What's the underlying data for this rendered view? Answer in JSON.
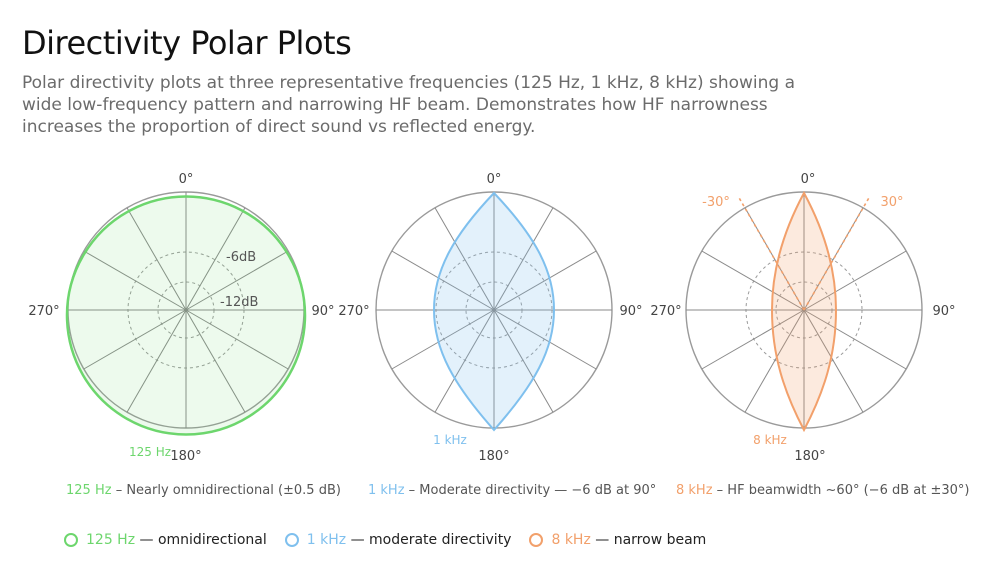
{
  "page": {
    "title": "Directivity Polar Plots",
    "subtitle": "Polar directivity plots at three representative frequencies (125 Hz, 1 kHz, 8 kHz) showing a wide low-frequency pattern and narrowing HF beam. Demonstrates how HF narrowness increases the proportion of direct sound vs reflected energy."
  },
  "colors": {
    "green": "#6dd66d",
    "blue": "#7fc0ee",
    "orange": "#f2a06b",
    "grid": "#9a9a9a",
    "spoke": "#8a8a8a"
  },
  "plots": [
    {
      "angle_labels": {
        "top": "0°",
        "right": "90°",
        "bottom": "180°",
        "left": "270°"
      },
      "ring_labels": [
        "-6dB",
        "-12dB"
      ],
      "freq_label": "125 Hz",
      "caption_freq": "125 Hz",
      "caption_text": "– Nearly omnidirectional (±0.5 dB)"
    },
    {
      "angle_labels": {
        "top": "0°",
        "right": "90°",
        "bottom": "180°",
        "left": "270°"
      },
      "freq_label": "1 kHz",
      "caption_freq": "1 kHz",
      "caption_text": "– Moderate directivity — −6 dB at 90°"
    },
    {
      "angle_labels": {
        "top": "0°",
        "right": "90°",
        "bottom": "180°",
        "left": "270°"
      },
      "beam_labels": [
        "-30°",
        "30°"
      ],
      "freq_label": "8 kHz",
      "caption_freq": "8 kHz",
      "caption_text": "– HF beamwidth ~60° (−6 dB at ±30°)"
    }
  ],
  "legend": [
    {
      "freq": "125 Hz",
      "desc": "— omnidirectional"
    },
    {
      "freq": "1 kHz",
      "desc": "— moderate directivity"
    },
    {
      "freq": "8 kHz",
      "desc": "— narrow beam"
    }
  ]
}
